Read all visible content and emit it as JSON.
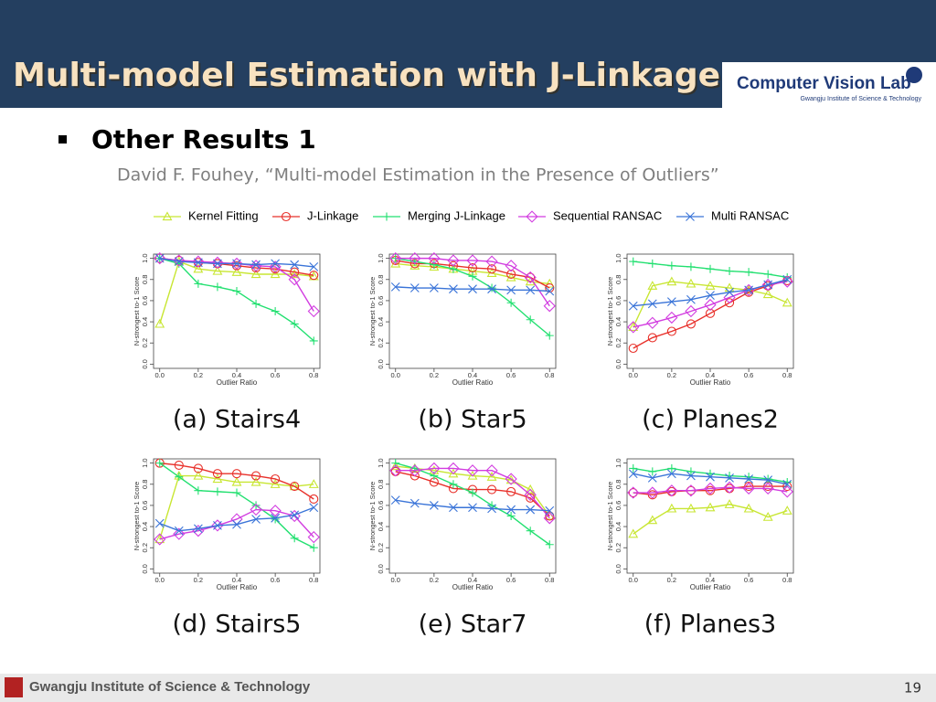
{
  "header": {
    "title": "Multi-model Estimation with J-Linkage",
    "logo_title": "Computer Vision Lab",
    "logo_subtitle": "Gwangju Institute of Science & Technology"
  },
  "bullet": "Other Results 1",
  "citation": "David F. Fouhey, “Multi-model Estimation in the Presence of Outliers”",
  "legend": [
    {
      "name": "Kernel Fitting",
      "color": "#c8e632",
      "marker": "triangle"
    },
    {
      "name": "J-Linkage",
      "color": "#e8302a",
      "marker": "circle"
    },
    {
      "name": "Merging J-Linkage",
      "color": "#22e070",
      "marker": "plus"
    },
    {
      "name": "Sequential RANSAC",
      "color": "#d23ce0",
      "marker": "diamond"
    },
    {
      "name": "Multi RANSAC",
      "color": "#3a74d8",
      "marker": "x"
    }
  ],
  "chart_data": [
    {
      "type": "line",
      "caption": "(a) Stairs4",
      "xlabel": "Outlier Ratio",
      "ylabel": "N-strongest to-1 Score",
      "x": [
        0,
        0.1,
        0.2,
        0.3,
        0.4,
        0.5,
        0.6,
        0.7,
        0.8
      ],
      "xlim": [
        -0.032,
        0.832
      ],
      "ylim": [
        -0.04,
        1.04
      ],
      "xticks": [
        {
          "value": 0,
          "label": "0.0"
        },
        0.2,
        0.4,
        0.6,
        0.8
      ],
      "yticks": [
        {
          "value": 0,
          "label": "0.0"
        },
        0.2,
        0.4,
        0.6,
        0.8,
        {
          "value": 1,
          "label": "1.0"
        }
      ],
      "series": [
        {
          "values": [
            0.38,
            0.97,
            0.9,
            0.88,
            0.87,
            0.85,
            0.85,
            0.85,
            0.83
          ]
        },
        {
          "values": [
            1.0,
            0.98,
            0.96,
            0.95,
            0.93,
            0.91,
            0.9,
            0.87,
            0.84
          ]
        },
        {
          "values": [
            1.0,
            0.95,
            0.76,
            0.73,
            0.69,
            0.57,
            0.5,
            0.38,
            0.22
          ]
        },
        {
          "values": [
            1.0,
            0.98,
            0.97,
            0.96,
            0.95,
            0.93,
            0.92,
            0.8,
            0.5
          ]
        },
        {
          "values": [
            1.0,
            0.97,
            0.96,
            0.95,
            0.95,
            0.94,
            0.95,
            0.94,
            0.92
          ]
        }
      ]
    },
    {
      "type": "line",
      "caption": "(b) Star5",
      "xlabel": "Outlier Ratio",
      "ylabel": "N-strongest to-1 Score",
      "x": [
        0,
        0.1,
        0.2,
        0.3,
        0.4,
        0.5,
        0.6,
        0.7,
        0.8
      ],
      "xlim": [
        -0.032,
        0.832
      ],
      "ylim": [
        -0.04,
        1.04
      ],
      "xticks": [
        {
          "value": 0,
          "label": "0.0"
        },
        0.2,
        0.4,
        0.6,
        0.8
      ],
      "yticks": [
        {
          "value": 0,
          "label": "0.0"
        },
        0.2,
        0.4,
        0.6,
        0.8,
        {
          "value": 1,
          "label": "1.0"
        }
      ],
      "series": [
        {
          "values": [
            0.95,
            0.93,
            0.92,
            0.9,
            0.88,
            0.86,
            0.82,
            0.78,
            0.76
          ]
        },
        {
          "values": [
            0.98,
            0.95,
            0.95,
            0.93,
            0.91,
            0.9,
            0.85,
            0.82,
            0.72
          ]
        },
        {
          "values": [
            1.0,
            0.97,
            0.94,
            0.9,
            0.83,
            0.72,
            0.58,
            0.42,
            0.27
          ]
        },
        {
          "values": [
            1.0,
            1.0,
            1.0,
            0.98,
            0.98,
            0.97,
            0.93,
            0.82,
            0.55
          ]
        },
        {
          "values": [
            0.73,
            0.72,
            0.72,
            0.71,
            0.71,
            0.71,
            0.7,
            0.7,
            0.69
          ]
        }
      ]
    },
    {
      "type": "line",
      "caption": "(c) Planes2",
      "xlabel": "Outlier Ratio",
      "ylabel": "N-strongest to-1 Score",
      "x": [
        0,
        0.1,
        0.2,
        0.3,
        0.4,
        0.5,
        0.6,
        0.7,
        0.8
      ],
      "xlim": [
        -0.032,
        0.832
      ],
      "ylim": [
        -0.04,
        1.04
      ],
      "xticks": [
        {
          "value": 0,
          "label": "0.0"
        },
        0.2,
        0.4,
        0.6,
        0.8
      ],
      "yticks": [
        {
          "value": 0,
          "label": "0.0"
        },
        0.2,
        0.4,
        0.6,
        0.8,
        {
          "value": 1,
          "label": "1.0"
        }
      ],
      "series": [
        {
          "values": [
            0.35,
            0.74,
            0.78,
            0.76,
            0.74,
            0.72,
            0.7,
            0.66,
            0.58
          ]
        },
        {
          "values": [
            0.15,
            0.25,
            0.31,
            0.38,
            0.48,
            0.58,
            0.68,
            0.74,
            0.79
          ]
        },
        {
          "values": [
            0.97,
            0.95,
            0.93,
            0.92,
            0.9,
            0.88,
            0.87,
            0.85,
            0.82
          ]
        },
        {
          "values": [
            0.35,
            0.39,
            0.44,
            0.5,
            0.56,
            0.63,
            0.7,
            0.75,
            0.78
          ]
        },
        {
          "values": [
            0.55,
            0.57,
            0.59,
            0.61,
            0.65,
            0.68,
            0.7,
            0.75,
            0.8
          ]
        }
      ]
    },
    {
      "type": "line",
      "caption": "(d) Stairs5",
      "xlabel": "Outlier Ratio",
      "ylabel": "N-strongest to-1 Score",
      "x": [
        0,
        0.1,
        0.2,
        0.3,
        0.4,
        0.5,
        0.6,
        0.7,
        0.8
      ],
      "xlim": [
        -0.032,
        0.832
      ],
      "ylim": [
        -0.04,
        1.04
      ],
      "xticks": [
        {
          "value": 0,
          "label": "0.0"
        },
        0.2,
        0.4,
        0.6,
        0.8
      ],
      "yticks": [
        {
          "value": 0,
          "label": "0.0"
        },
        0.2,
        0.4,
        0.6,
        0.8,
        {
          "value": 1,
          "label": "1.0"
        }
      ],
      "series": [
        {
          "values": [
            0.28,
            0.88,
            0.88,
            0.85,
            0.82,
            0.82,
            0.8,
            0.78,
            0.8
          ]
        },
        {
          "values": [
            1.0,
            0.98,
            0.95,
            0.9,
            0.9,
            0.88,
            0.85,
            0.78,
            0.66
          ]
        },
        {
          "values": [
            1.0,
            0.87,
            0.74,
            0.73,
            0.72,
            0.6,
            0.47,
            0.29,
            0.2
          ]
        },
        {
          "values": [
            0.28,
            0.33,
            0.36,
            0.41,
            0.47,
            0.56,
            0.55,
            0.5,
            0.3
          ]
        },
        {
          "values": [
            0.43,
            0.36,
            0.38,
            0.41,
            0.42,
            0.47,
            0.48,
            0.51,
            0.58
          ]
        }
      ]
    },
    {
      "type": "line",
      "caption": "(e) Star7",
      "xlabel": "Outlier Ratio",
      "ylabel": "N-strongest to-1 Score",
      "x": [
        0,
        0.1,
        0.2,
        0.3,
        0.4,
        0.5,
        0.6,
        0.7,
        0.8
      ],
      "xlim": [
        -0.032,
        0.832
      ],
      "ylim": [
        -0.04,
        1.04
      ],
      "xticks": [
        {
          "value": 0,
          "label": "0.0"
        },
        0.2,
        0.4,
        0.6,
        0.8
      ],
      "yticks": [
        {
          "value": 0,
          "label": "0.0"
        },
        0.2,
        0.4,
        0.6,
        0.8,
        {
          "value": 1,
          "label": "1.0"
        }
      ],
      "series": [
        {
          "values": [
            0.97,
            0.95,
            0.93,
            0.9,
            0.88,
            0.87,
            0.84,
            0.75,
            0.5
          ]
        },
        {
          "values": [
            0.92,
            0.88,
            0.82,
            0.76,
            0.75,
            0.75,
            0.73,
            0.67,
            0.5
          ]
        },
        {
          "values": [
            1.0,
            0.95,
            0.88,
            0.8,
            0.72,
            0.6,
            0.5,
            0.36,
            0.23
          ]
        },
        {
          "values": [
            0.93,
            0.93,
            0.95,
            0.95,
            0.93,
            0.93,
            0.85,
            0.7,
            0.48
          ]
        },
        {
          "values": [
            0.65,
            0.62,
            0.6,
            0.58,
            0.58,
            0.57,
            0.56,
            0.56,
            0.55
          ]
        }
      ]
    },
    {
      "type": "line",
      "caption": "(f) Planes3",
      "xlabel": "Outlier Ratio",
      "ylabel": "N-strongest to-1 Score",
      "x": [
        0,
        0.1,
        0.2,
        0.3,
        0.4,
        0.5,
        0.6,
        0.7,
        0.8
      ],
      "xlim": [
        -0.032,
        0.832
      ],
      "ylim": [
        -0.04,
        1.04
      ],
      "xticks": [
        {
          "value": 0,
          "label": "0.0"
        },
        0.2,
        0.4,
        0.6,
        0.8
      ],
      "yticks": [
        {
          "value": 0,
          "label": "0.0"
        },
        0.2,
        0.4,
        0.6,
        0.8,
        {
          "value": 1,
          "label": "1.0"
        }
      ],
      "series": [
        {
          "values": [
            0.33,
            0.46,
            0.57,
            0.57,
            0.58,
            0.61,
            0.57,
            0.49,
            0.55
          ]
        },
        {
          "values": [
            0.72,
            0.7,
            0.73,
            0.74,
            0.74,
            0.76,
            0.78,
            0.78,
            0.78
          ]
        },
        {
          "values": [
            0.95,
            0.92,
            0.95,
            0.92,
            0.9,
            0.88,
            0.87,
            0.85,
            0.82
          ]
        },
        {
          "values": [
            0.72,
            0.72,
            0.74,
            0.74,
            0.76,
            0.77,
            0.76,
            0.76,
            0.73
          ]
        },
        {
          "values": [
            0.9,
            0.86,
            0.9,
            0.88,
            0.87,
            0.86,
            0.85,
            0.84,
            0.8
          ]
        }
      ]
    }
  ],
  "footer": {
    "institute": "Gwangju Institute of Science & Technology",
    "page": "19"
  }
}
